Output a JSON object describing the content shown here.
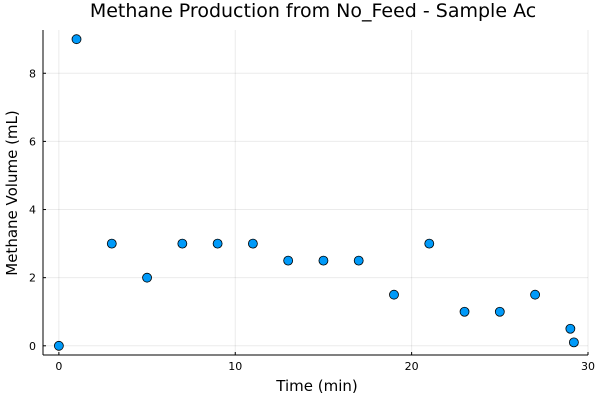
{
  "chart_data": {
    "type": "scatter",
    "title": "Methane Production from No_Feed - Sample Ac",
    "xlabel": "Time (min)",
    "ylabel": "Methane Volume (mL)",
    "xlim": [
      -0.9,
      30
    ],
    "ylim": [
      -0.27,
      9.27
    ],
    "xticks": [
      0,
      10,
      20,
      30
    ],
    "xtick_labels": [
      "0",
      "10",
      "20",
      "30"
    ],
    "yticks": [
      0,
      2,
      4,
      6,
      8
    ],
    "ytick_labels": [
      "0",
      "2",
      "4",
      "6",
      "8"
    ],
    "grid": true,
    "legend": "none",
    "series": [
      {
        "color": "#009af9",
        "x": [
          0,
          1,
          3,
          5,
          7,
          9,
          11,
          13,
          15,
          17,
          19,
          21,
          23,
          25,
          27,
          29,
          29.2
        ],
        "y": [
          0,
          9,
          3,
          2,
          3,
          3,
          3,
          2.5,
          2.5,
          2.5,
          1.5,
          3,
          1,
          1,
          1.5,
          0.5,
          0.1
        ]
      }
    ]
  }
}
